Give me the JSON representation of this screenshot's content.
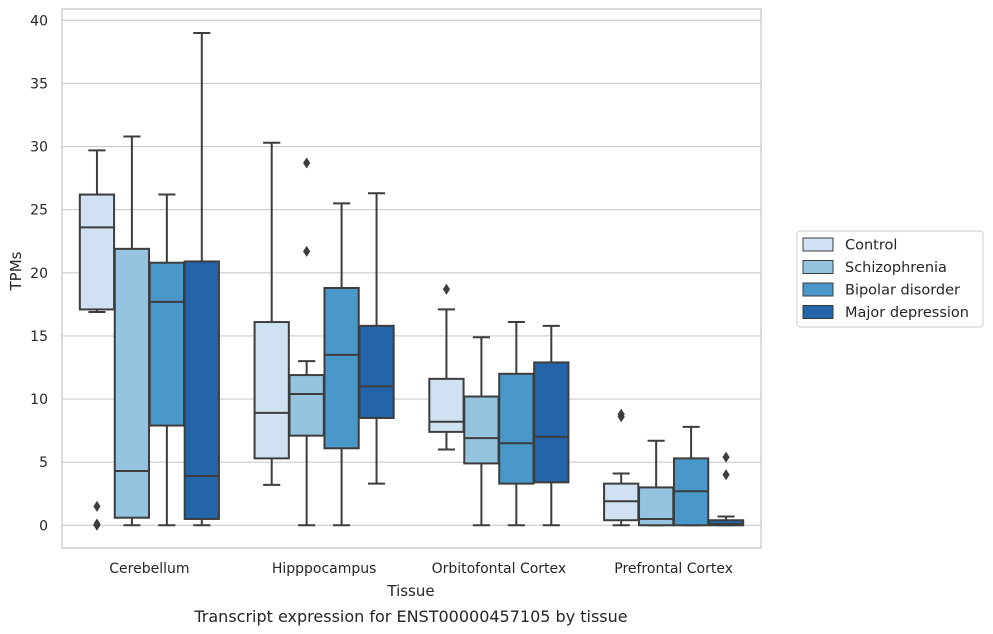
{
  "caption": "Transcript expression for ENST00000457105 by tissue",
  "chart_data": {
    "type": "box",
    "title": "",
    "xlabel": "Tissue",
    "ylabel": "TPMs",
    "ylim": [
      -1.8,
      40.9
    ],
    "yticks": [
      0,
      5,
      10,
      15,
      20,
      25,
      30,
      35,
      40
    ],
    "grid": "horizontal",
    "legend_position": "right",
    "categories": [
      "Cerebellum",
      "Hipppocampus",
      "Orbitofontal Cortex",
      "Prefrontal Cortex"
    ],
    "series": [
      {
        "name": "Control",
        "color": "#d0e1f1",
        "boxes": [
          {
            "whislo": 16.9,
            "q1": 17.1,
            "med": 23.6,
            "q3": 26.2,
            "whishi": 29.7,
            "fliers": [
              1.5,
              0.1,
              0.0
            ]
          },
          {
            "whislo": 3.2,
            "q1": 5.3,
            "med": 8.9,
            "q3": 16.1,
            "whishi": 30.3,
            "fliers": []
          },
          {
            "whislo": 6.0,
            "q1": 7.4,
            "med": 8.2,
            "q3": 11.6,
            "whishi": 17.1,
            "fliers": [
              18.7
            ]
          },
          {
            "whislo": 0.0,
            "q1": 0.4,
            "med": 1.9,
            "q3": 3.3,
            "whishi": 4.1,
            "fliers": [
              8.6,
              8.8
            ]
          }
        ]
      },
      {
        "name": "Schizophrenia",
        "color": "#94c4df",
        "boxes": [
          {
            "whislo": 0.0,
            "q1": 0.6,
            "med": 4.3,
            "q3": 21.9,
            "whishi": 30.8,
            "fliers": []
          },
          {
            "whislo": 0.0,
            "q1": 7.1,
            "med": 10.4,
            "q3": 11.9,
            "whishi": 13.0,
            "fliers": [
              21.7,
              28.7
            ]
          },
          {
            "whislo": 0.0,
            "q1": 4.9,
            "med": 6.9,
            "q3": 10.2,
            "whishi": 14.9,
            "fliers": []
          },
          {
            "whislo": 0.0,
            "q1": 0.0,
            "med": 0.5,
            "q3": 3.0,
            "whishi": 6.7,
            "fliers": []
          }
        ]
      },
      {
        "name": "Bipolar disorder",
        "color": "#4a98c9",
        "boxes": [
          {
            "whislo": 0.0,
            "q1": 7.9,
            "med": 17.7,
            "q3": 20.8,
            "whishi": 26.2,
            "fliers": []
          },
          {
            "whislo": 0.0,
            "q1": 6.1,
            "med": 13.5,
            "q3": 18.8,
            "whishi": 25.5,
            "fliers": []
          },
          {
            "whislo": 0.0,
            "q1": 3.3,
            "med": 6.5,
            "q3": 12.0,
            "whishi": 16.1,
            "fliers": []
          },
          {
            "whislo": 0.0,
            "q1": 0.0,
            "med": 2.7,
            "q3": 5.3,
            "whishi": 7.8,
            "fliers": []
          }
        ]
      },
      {
        "name": "Major depression",
        "color": "#2464a8",
        "boxes": [
          {
            "whislo": 0.0,
            "q1": 0.5,
            "med": 3.9,
            "q3": 20.9,
            "whishi": 39.0,
            "fliers": []
          },
          {
            "whislo": 3.3,
            "q1": 8.5,
            "med": 11.0,
            "q3": 15.8,
            "whishi": 26.3,
            "fliers": []
          },
          {
            "whislo": 0.0,
            "q1": 3.4,
            "med": 7.0,
            "q3": 12.9,
            "whishi": 15.8,
            "fliers": []
          },
          {
            "whislo": 0.0,
            "q1": 0.0,
            "med": 0.1,
            "q3": 0.4,
            "whishi": 0.7,
            "fliers": [
              4.0,
              5.4
            ]
          }
        ]
      }
    ]
  }
}
